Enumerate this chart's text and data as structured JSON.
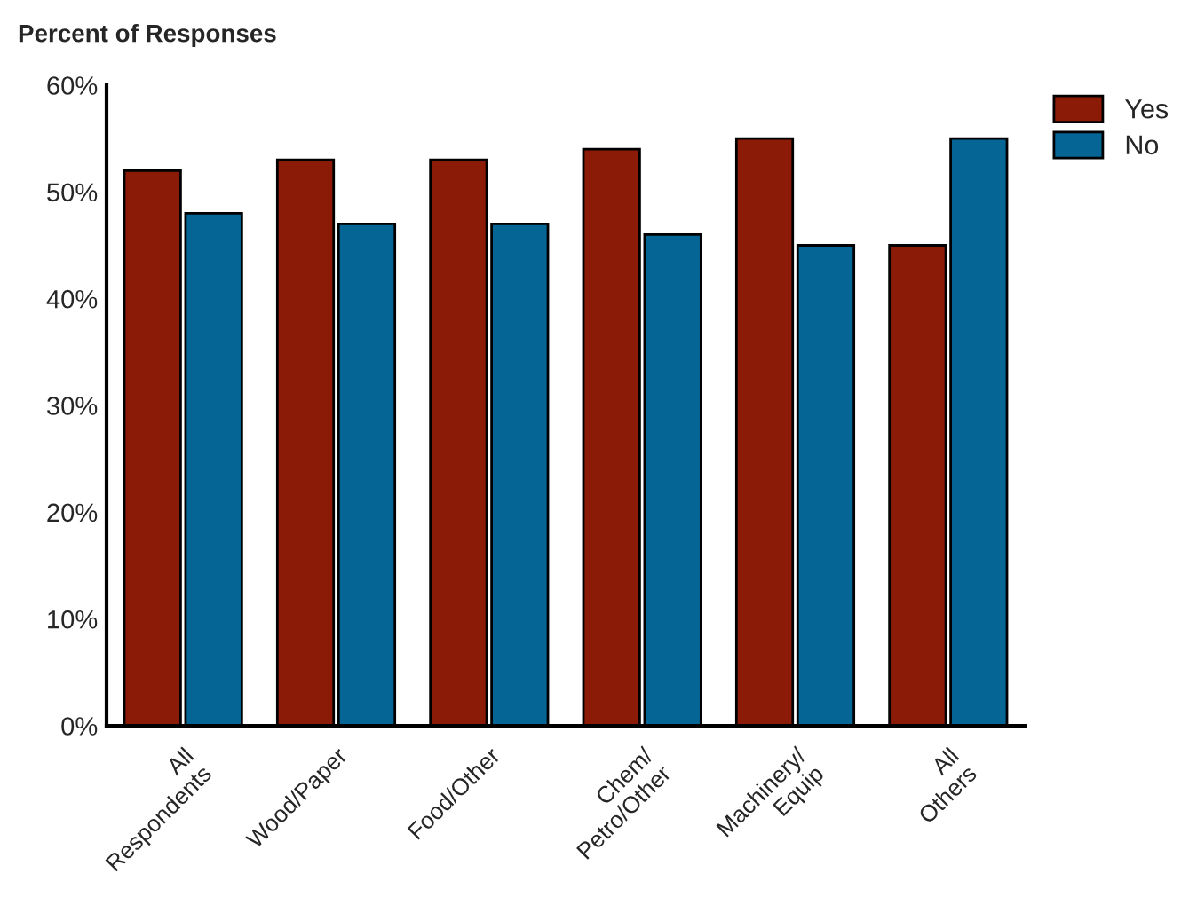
{
  "chart_data": {
    "type": "bar",
    "ylabel": "Percent of Responses",
    "categories": [
      "All\nRespondents",
      "Wood/Paper",
      "Food/Other",
      "Chem/\nPetro/Other",
      "Machinery/\nEquip",
      "All\nOthers"
    ],
    "series": [
      {
        "name": "Yes",
        "color": "#8b1a06",
        "values": [
          52,
          53,
          53,
          54,
          55,
          45
        ]
      },
      {
        "name": "No",
        "color": "#056594",
        "values": [
          48,
          47,
          47,
          46,
          45,
          55
        ]
      }
    ],
    "ylim": [
      0,
      60
    ],
    "yticks": [
      {
        "value": 0,
        "label": "0%"
      },
      {
        "value": 10,
        "label": "10%"
      },
      {
        "value": 20,
        "label": "20%"
      },
      {
        "value": 30,
        "label": "30%"
      },
      {
        "value": 40,
        "label": "40%"
      },
      {
        "value": 50,
        "label": "50%"
      },
      {
        "value": 60,
        "label": "60%"
      }
    ],
    "grid": false,
    "legend": "top right"
  }
}
